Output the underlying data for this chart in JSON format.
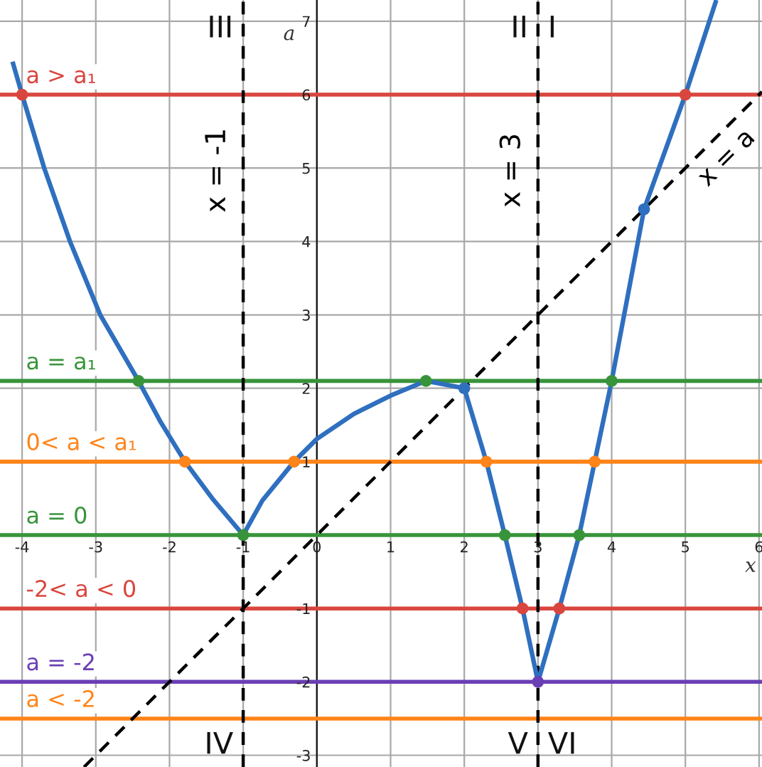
{
  "chart_data": {
    "type": "line",
    "xlabel": "x",
    "ylabel": "a",
    "xlim": [
      -4.3,
      6.04
    ],
    "ylim": [
      -3.16,
      7.29
    ],
    "xticks": [
      -4,
      -3,
      -2,
      -1,
      0,
      1,
      2,
      3,
      4,
      5,
      6
    ],
    "yticks": [
      -3,
      -2,
      -1,
      1,
      2,
      3,
      4,
      5,
      6,
      7
    ],
    "grid": true,
    "series": [
      {
        "color": "#2f6fbf",
        "x": [
          -4.13,
          -4.0,
          -3.7,
          -3.35,
          -2.94,
          -2.42,
          -2.12,
          -1.79,
          -1.42,
          -1.0,
          -0.74,
          -0.31,
          0.0,
          0.5,
          1.0,
          1.48,
          2.0,
          2.3,
          2.55,
          2.79,
          3.0,
          3.29,
          3.56,
          3.77,
          4.0,
          4.44,
          5.0,
          5.42
        ],
        "values": [
          6.45,
          6.0,
          5.0,
          4.0,
          3.0,
          2.1,
          1.54,
          1.0,
          0.5,
          0.0,
          0.47,
          1.0,
          1.31,
          1.65,
          1.9,
          2.1,
          2.0,
          1.0,
          0.0,
          -1.0,
          -2.0,
          -1.0,
          0.0,
          1.0,
          2.1,
          4.44,
          6.0,
          7.29
        ]
      },
      {
        "type": "line",
        "name": "x = a",
        "color": "#000000",
        "line_style": "dashed",
        "x": [
          -3.16,
          6.04
        ],
        "values": [
          -3.16,
          6.04
        ]
      },
      {
        "type": "line",
        "name": "a > a₁",
        "color": "#d9463e",
        "x": [
          -4.3,
          6.04
        ],
        "values": [
          6,
          6
        ]
      },
      {
        "type": "line",
        "name": "a = a₁",
        "color": "#38943a",
        "x": [
          -4.3,
          6.04
        ],
        "values": [
          2.1,
          2.1
        ]
      },
      {
        "type": "line",
        "name": "0< a < a₁",
        "color": "#ff8419",
        "x": [
          -4.3,
          6.04
        ],
        "values": [
          1,
          1
        ]
      },
      {
        "type": "line",
        "name": "a = 0",
        "color": "#38943a",
        "x": [
          -4.3,
          6.04
        ],
        "values": [
          0,
          0
        ]
      },
      {
        "type": "line",
        "name": "-2< a < 0",
        "color": "#d9463e",
        "x": [
          -4.3,
          6.04
        ],
        "values": [
          -1,
          -1
        ]
      },
      {
        "type": "line",
        "name": "a = -2",
        "color": "#6a3fb4",
        "x": [
          -4.3,
          6.04
        ],
        "values": [
          -2,
          -2
        ]
      },
      {
        "type": "line",
        "name": "a < -2",
        "color": "#ff8419",
        "x": [
          -4.3,
          6.04
        ],
        "values": [
          -2.5,
          -2.5
        ]
      },
      {
        "type": "line",
        "name": "x = -1",
        "color": "#000000",
        "line_style": "dashed",
        "x": [
          -1,
          -1
        ],
        "values": [
          -3.16,
          7.29
        ]
      },
      {
        "type": "line",
        "name": "x = 3",
        "color": "#000000",
        "line_style": "dashed",
        "x": [
          3,
          3
        ],
        "values": [
          -3.16,
          7.29
        ]
      },
      {
        "type": "scatter",
        "marker": "circle",
        "x": [
          -4.0,
          5.0,
          -2.42,
          1.48,
          4.0,
          2.0,
          4.44,
          -1.79,
          -0.31,
          2.3,
          3.77,
          -1.0,
          2.55,
          3.56,
          2.79,
          3.29,
          3.0
        ],
        "values": [
          6.0,
          6.0,
          2.1,
          2.1,
          2.1,
          2.0,
          4.44,
          1.0,
          1.0,
          1.0,
          1.0,
          0.0,
          0.0,
          0.0,
          -1.0,
          -1.0,
          -2.0
        ],
        "colors": [
          "#d9463e",
          "#d9463e",
          "#38943a",
          "#38943a",
          "#38943a",
          "#2f6fbf",
          "#2f6fbf",
          "#ff8419",
          "#ff8419",
          "#ff8419",
          "#ff8419",
          "#38943a",
          "#38943a",
          "#38943a",
          "#d9463e",
          "#d9463e",
          "#6a3fb4"
        ]
      }
    ],
    "annotations": [
      "III",
      "II",
      "I",
      "IV",
      "V",
      "VI"
    ]
  }
}
